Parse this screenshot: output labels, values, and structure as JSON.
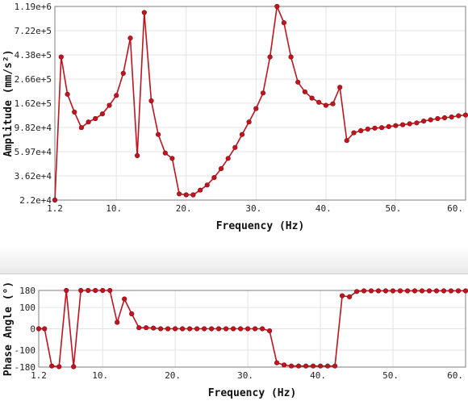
{
  "chart_data": [
    {
      "type": "line",
      "xlabel": "Frequency (Hz)",
      "ylabel": "Amplitude (mm/s²)",
      "y_scale": "log",
      "xlim": [
        1.2,
        60
      ],
      "x_ticks": [
        1.2,
        10,
        20,
        30,
        40,
        50,
        60
      ],
      "x_tick_labels": [
        "1.2",
        "10.",
        "20.",
        "30.",
        "40.",
        "50.",
        "60."
      ],
      "ylim": [
        22000,
        1190000
      ],
      "y_ticks": [
        22000,
        36200,
        59700,
        98200,
        162000,
        266000,
        438000,
        722000,
        1190000
      ],
      "y_tick_labels": [
        "2.2e+4",
        "3.62e+4",
        "5.97e+4",
        "9.82e+4",
        "1.62e+5",
        "2.66e+5",
        "4.38e+5",
        "7.22e+5",
        "1.19e+6"
      ],
      "grid": true,
      "color": "#c0141e",
      "series": [
        {
          "x": [
            1.2,
            2.1,
            3.0,
            4.0,
            5.0,
            6.0,
            7.0,
            8.0,
            9.0,
            10.0,
            11.0,
            12.0,
            13.0,
            14.0,
            15.0,
            16.0,
            17.0,
            18.0,
            19.0,
            20.0,
            21.0,
            22.0,
            23.0,
            24.0,
            25.0,
            26.0,
            27.0,
            28.0,
            29.0,
            30.0,
            31.0,
            32.0,
            33.0,
            34.0,
            35.0,
            36.0,
            37.0,
            38.0,
            39.0,
            40.0,
            41.0,
            42.0,
            43.0,
            44.0,
            45.0,
            46.0,
            47.0,
            48.0,
            49.0,
            50.0,
            51.0,
            52.0,
            53.0,
            54.0,
            55.0,
            56.0,
            57.0,
            58.0,
            59.0,
            60.0
          ],
          "values": [
            22000,
            420000,
            195000,
            135000,
            98000,
            110000,
            118000,
            130000,
            155000,
            190000,
            300000,
            620000,
            55000,
            1050000,
            170000,
            85000,
            58000,
            52000,
            25000,
            24500,
            24500,
            27000,
            30000,
            35000,
            42000,
            52000,
            65000,
            85000,
            110000,
            145000,
            200000,
            420000,
            1190000,
            850000,
            420000,
            250000,
            205000,
            180000,
            165000,
            155000,
            160000,
            225000,
            75000,
            88000,
            92000,
            95000,
            97000,
            98000,
            100000,
            102000,
            104000,
            106000,
            108000,
            112000,
            115000,
            118000,
            120000,
            122000,
            125000,
            127000
          ]
        }
      ]
    },
    {
      "type": "line",
      "xlabel": "Frequency (Hz)",
      "ylabel": "Phase Angle (°)",
      "xlim": [
        1.2,
        60
      ],
      "x_ticks": [
        1.2,
        10,
        20,
        30,
        40,
        50,
        60
      ],
      "x_tick_labels": [
        "1.2",
        "10.",
        "20.",
        "30.",
        "40.",
        "50.",
        "60."
      ],
      "ylim": [
        -180,
        180
      ],
      "y_ticks": [
        -180,
        -100,
        0,
        100,
        180
      ],
      "y_tick_labels": [
        "-180",
        "-100",
        "0",
        "100",
        "180"
      ],
      "grid": true,
      "color": "#c0141e",
      "series": [
        {
          "x": [
            1.2,
            2.0,
            3.0,
            4.0,
            5.0,
            6.0,
            7.0,
            8.0,
            9.0,
            10.0,
            11.0,
            12.0,
            13.0,
            14.0,
            15.0,
            16.0,
            17.0,
            18.0,
            19.0,
            20.0,
            21.0,
            22.0,
            23.0,
            24.0,
            25.0,
            26.0,
            27.0,
            28.0,
            29.0,
            30.0,
            31.0,
            32.0,
            33.0,
            34.0,
            35.0,
            36.0,
            37.0,
            38.0,
            39.0,
            40.0,
            41.0,
            42.0,
            43.0,
            44.0,
            45.0,
            46.0,
            47.0,
            48.0,
            49.0,
            50.0,
            51.0,
            52.0,
            53.0,
            54.0,
            55.0,
            56.0,
            57.0,
            58.0,
            59.0,
            60.0
          ],
          "values": [
            0,
            0,
            -175,
            -178,
            180,
            -178,
            180,
            180,
            180,
            180,
            180,
            30,
            140,
            70,
            5,
            5,
            3,
            0,
            0,
            0,
            0,
            0,
            0,
            0,
            0,
            0,
            0,
            0,
            0,
            0,
            0,
            0,
            -10,
            -160,
            -170,
            -175,
            -175,
            -175,
            -175,
            -175,
            -175,
            -175,
            155,
            150,
            175,
            178,
            178,
            178,
            178,
            178,
            178,
            178,
            178,
            178,
            178,
            178,
            178,
            178,
            178,
            178
          ]
        }
      ]
    }
  ]
}
